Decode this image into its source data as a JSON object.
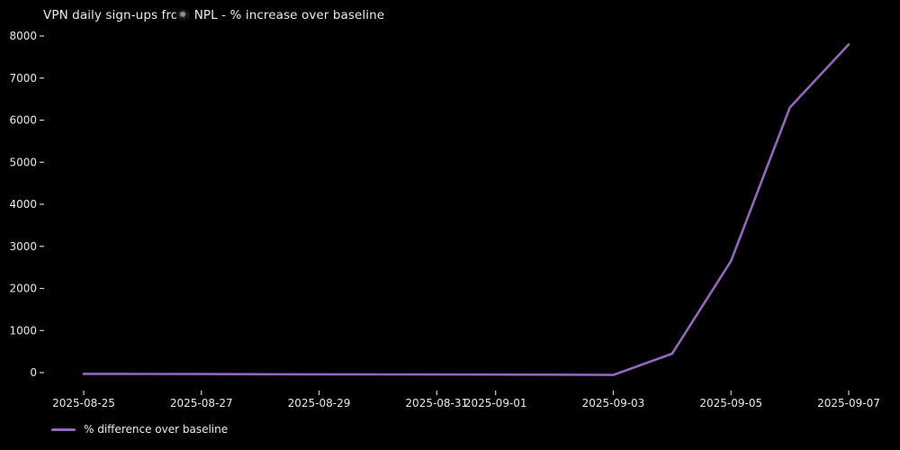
{
  "figure": {
    "background_color": "#000000",
    "text_color": "#ebebeb",
    "tick_color": "#cfcfcf"
  },
  "chart_data": {
    "type": "line",
    "title": "VPN daily sign-ups from NPL - % increase over baseline",
    "xlabel": "",
    "ylabel": "",
    "grid": false,
    "legend_position": "lower left",
    "x": [
      "2025-08-25",
      "2025-08-26",
      "2025-08-27",
      "2025-08-28",
      "2025-08-29",
      "2025-08-30",
      "2025-08-31",
      "2025-09-01",
      "2025-09-02",
      "2025-09-03",
      "2025-09-04",
      "2025-09-05",
      "2025-09-06",
      "2025-09-07"
    ],
    "series": [
      {
        "name": "% difference over baseline",
        "color": "#9467bd",
        "values": [
          -30,
          -32,
          -35,
          -38,
          -40,
          -42,
          -45,
          -48,
          -50,
          -55,
          450,
          2650,
          6300,
          7800
        ]
      }
    ],
    "yticks": [
      0,
      1000,
      2000,
      3000,
      4000,
      5000,
      6000,
      7000,
      8000
    ],
    "ylim": [
      -450,
      8200
    ],
    "xticks": [
      {
        "label": "2025-08-25",
        "index": 0
      },
      {
        "label": "2025-08-27",
        "index": 2
      },
      {
        "label": "2025-08-29",
        "index": 4
      },
      {
        "label": "2025-08-31",
        "index": 6
      },
      {
        "label": "2025-09-01",
        "index": 7
      },
      {
        "label": "2025-09-03",
        "index": 9
      },
      {
        "label": "2025-09-05",
        "index": 11
      },
      {
        "label": "2025-09-07",
        "index": 13
      }
    ]
  }
}
